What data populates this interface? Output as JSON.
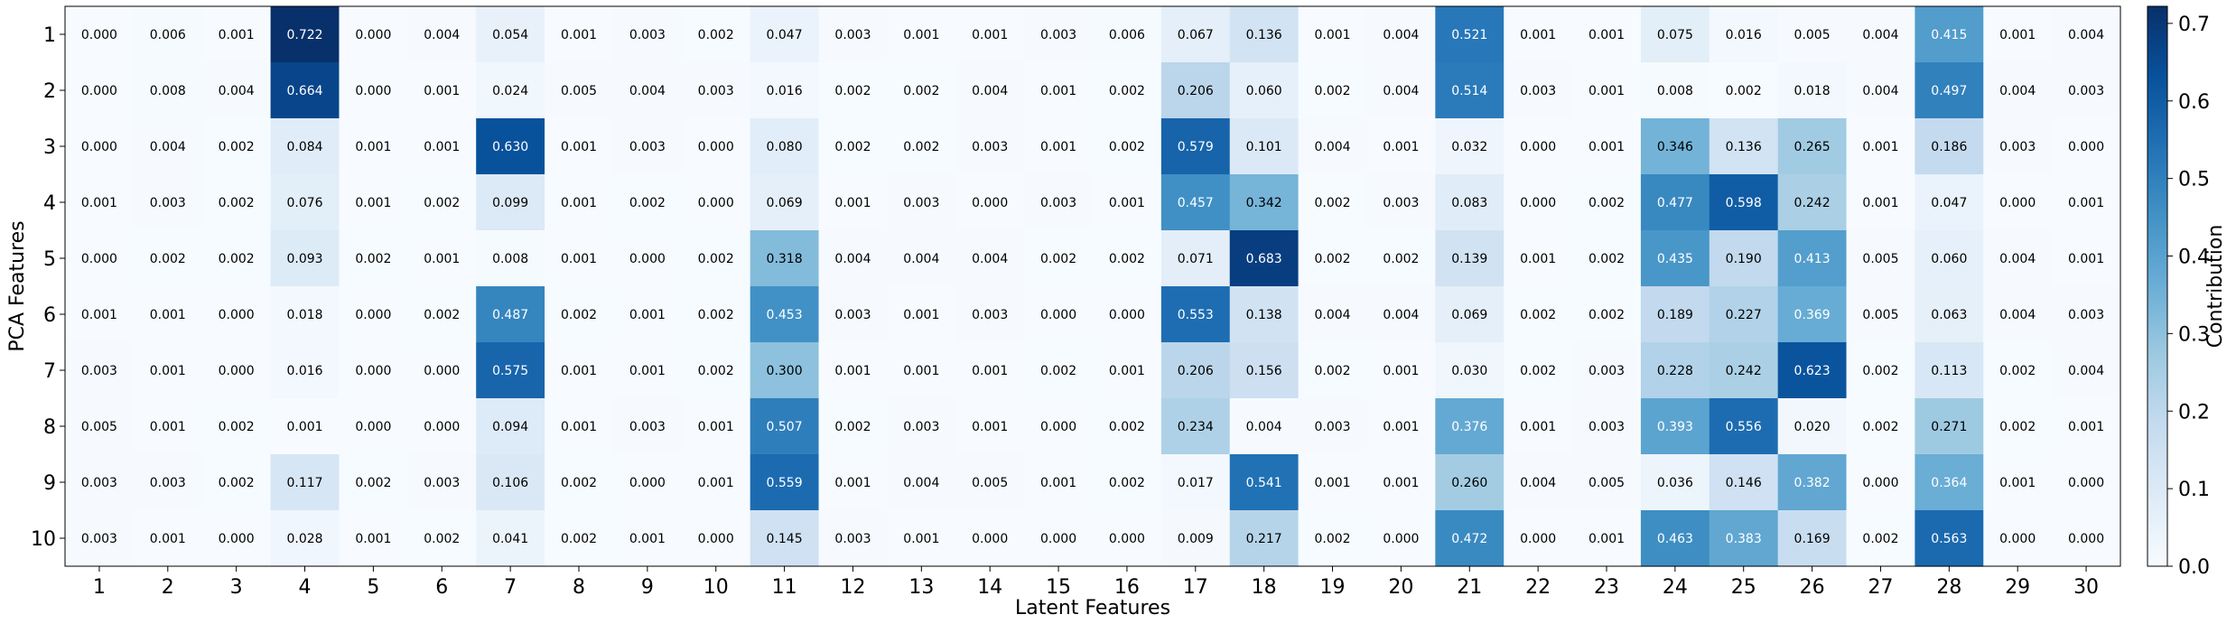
{
  "chart_data": {
    "type": "heatmap",
    "title": "",
    "xlabel": "Latent Features",
    "ylabel": "PCA Features",
    "x_categories": [
      "1",
      "2",
      "3",
      "4",
      "5",
      "6",
      "7",
      "8",
      "9",
      "10",
      "11",
      "12",
      "13",
      "14",
      "15",
      "16",
      "17",
      "18",
      "19",
      "20",
      "21",
      "22",
      "23",
      "24",
      "25",
      "26",
      "27",
      "28",
      "29",
      "30"
    ],
    "y_categories": [
      "1",
      "2",
      "3",
      "4",
      "5",
      "6",
      "7",
      "8",
      "9",
      "10"
    ],
    "values": [
      [
        "0.000",
        "0.006",
        "0.001",
        "0.722",
        "0.000",
        "0.004",
        "0.054",
        "0.001",
        "0.003",
        "0.002",
        "0.047",
        "0.003",
        "0.001",
        "0.001",
        "0.003",
        "0.006",
        "0.067",
        "0.136",
        "0.001",
        "0.004",
        "0.521",
        "0.001",
        "0.001",
        "0.075",
        "0.016",
        "0.005",
        "0.004",
        "0.415",
        "0.001",
        "0.004"
      ],
      [
        "0.000",
        "0.008",
        "0.004",
        "0.664",
        "0.000",
        "0.001",
        "0.024",
        "0.005",
        "0.004",
        "0.003",
        "0.016",
        "0.002",
        "0.002",
        "0.004",
        "0.001",
        "0.002",
        "0.206",
        "0.060",
        "0.002",
        "0.004",
        "0.514",
        "0.003",
        "0.001",
        "0.008",
        "0.002",
        "0.018",
        "0.004",
        "0.497",
        "0.004",
        "0.003"
      ],
      [
        "0.000",
        "0.004",
        "0.002",
        "0.084",
        "0.001",
        "0.001",
        "0.630",
        "0.001",
        "0.003",
        "0.000",
        "0.080",
        "0.002",
        "0.002",
        "0.003",
        "0.001",
        "0.002",
        "0.579",
        "0.101",
        "0.004",
        "0.001",
        "0.032",
        "0.000",
        "0.001",
        "0.346",
        "0.136",
        "0.265",
        "0.001",
        "0.186",
        "0.003",
        "0.000"
      ],
      [
        "0.001",
        "0.003",
        "0.002",
        "0.076",
        "0.001",
        "0.002",
        "0.099",
        "0.001",
        "0.002",
        "0.000",
        "0.069",
        "0.001",
        "0.003",
        "0.000",
        "0.003",
        "0.001",
        "0.457",
        "0.342",
        "0.002",
        "0.003",
        "0.083",
        "0.000",
        "0.002",
        "0.477",
        "0.598",
        "0.242",
        "0.001",
        "0.047",
        "0.000",
        "0.001"
      ],
      [
        "0.000",
        "0.002",
        "0.002",
        "0.093",
        "0.002",
        "0.001",
        "0.008",
        "0.001",
        "0.000",
        "0.002",
        "0.318",
        "0.004",
        "0.004",
        "0.004",
        "0.002",
        "0.002",
        "0.071",
        "0.683",
        "0.002",
        "0.002",
        "0.139",
        "0.001",
        "0.002",
        "0.435",
        "0.190",
        "0.413",
        "0.005",
        "0.060",
        "0.004",
        "0.001"
      ],
      [
        "0.001",
        "0.001",
        "0.000",
        "0.018",
        "0.000",
        "0.002",
        "0.487",
        "0.002",
        "0.001",
        "0.002",
        "0.453",
        "0.003",
        "0.001",
        "0.003",
        "0.000",
        "0.000",
        "0.553",
        "0.138",
        "0.004",
        "0.004",
        "0.069",
        "0.002",
        "0.002",
        "0.189",
        "0.227",
        "0.369",
        "0.005",
        "0.063",
        "0.004",
        "0.003"
      ],
      [
        "0.003",
        "0.001",
        "0.000",
        "0.016",
        "0.000",
        "0.000",
        "0.575",
        "0.001",
        "0.001",
        "0.002",
        "0.300",
        "0.001",
        "0.001",
        "0.001",
        "0.002",
        "0.001",
        "0.206",
        "0.156",
        "0.002",
        "0.001",
        "0.030",
        "0.002",
        "0.003",
        "0.228",
        "0.242",
        "0.623",
        "0.002",
        "0.113",
        "0.002",
        "0.004"
      ],
      [
        "0.005",
        "0.001",
        "0.002",
        "0.001",
        "0.000",
        "0.000",
        "0.094",
        "0.001",
        "0.003",
        "0.001",
        "0.507",
        "0.002",
        "0.003",
        "0.001",
        "0.000",
        "0.002",
        "0.234",
        "0.004",
        "0.003",
        "0.001",
        "0.376",
        "0.001",
        "0.003",
        "0.393",
        "0.556",
        "0.020",
        "0.002",
        "0.271",
        "0.002",
        "0.001"
      ],
      [
        "0.003",
        "0.003",
        "0.002",
        "0.117",
        "0.002",
        "0.003",
        "0.106",
        "0.002",
        "0.000",
        "0.001",
        "0.559",
        "0.001",
        "0.004",
        "0.005",
        "0.001",
        "0.002",
        "0.017",
        "0.541",
        "0.001",
        "0.001",
        "0.260",
        "0.004",
        "0.005",
        "0.036",
        "0.146",
        "0.382",
        "0.000",
        "0.364",
        "0.001",
        "0.000"
      ],
      [
        "0.003",
        "0.001",
        "0.000",
        "0.028",
        "0.001",
        "0.002",
        "0.041",
        "0.002",
        "0.001",
        "0.000",
        "0.145",
        "0.003",
        "0.001",
        "0.000",
        "0.000",
        "0.000",
        "0.009",
        "0.217",
        "0.002",
        "0.000",
        "0.472",
        "0.000",
        "0.001",
        "0.463",
        "0.383",
        "0.169",
        "0.002",
        "0.563",
        "0.000",
        "0.000"
      ]
    ],
    "colorbar": {
      "label": "Contribution",
      "range": [
        0.0,
        0.722
      ],
      "ticks": [
        "0.0",
        "0.1",
        "0.2",
        "0.3",
        "0.4",
        "0.5",
        "0.6",
        "0.7"
      ],
      "colormap": "Blues"
    }
  }
}
